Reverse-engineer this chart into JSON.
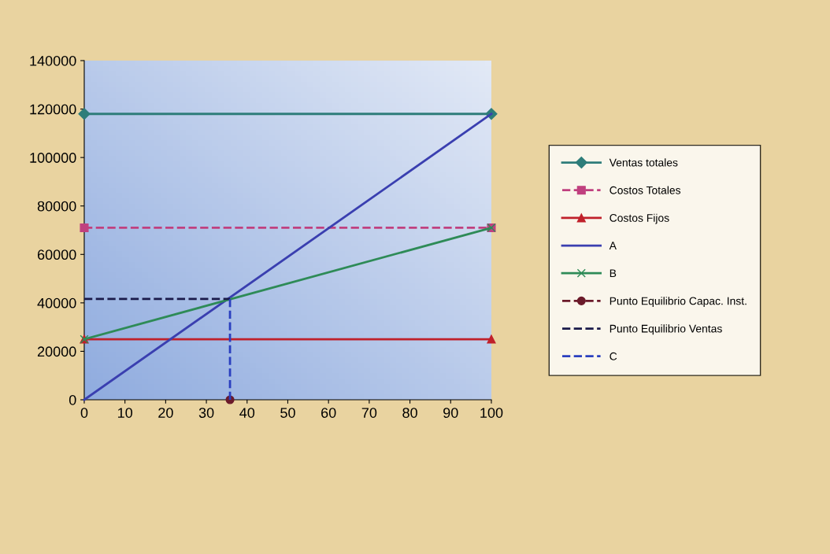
{
  "chart_data": {
    "type": "line",
    "xlim": [
      0,
      100
    ],
    "ylim": [
      0,
      140000
    ],
    "xticks": [
      0,
      10,
      20,
      30,
      40,
      50,
      60,
      70,
      80,
      90,
      100
    ],
    "yticks": [
      0,
      20000,
      40000,
      60000,
      80000,
      100000,
      120000,
      140000
    ],
    "grid": false,
    "legend": "right",
    "series": [
      {
        "name": "Ventas totales",
        "color": "#2e7d7a",
        "x": [
          0,
          100
        ],
        "values": [
          118000,
          118000
        ],
        "marker": "diamond",
        "line_style": "solid"
      },
      {
        "name": "Costos Totales",
        "color": "#c0407f",
        "x": [
          0,
          100
        ],
        "values": [
          71000,
          71000
        ],
        "marker": "square",
        "line_style": "dashed"
      },
      {
        "name": "Costos Fijos",
        "color": "#c0202a",
        "x": [
          0,
          100
        ],
        "values": [
          25000,
          25000
        ],
        "marker": "triangle",
        "line_style": "solid"
      },
      {
        "name": "A",
        "color": "#3a3fb0",
        "x": [
          0,
          100
        ],
        "values": [
          0,
          118000
        ],
        "marker": "none",
        "line_style": "solid"
      },
      {
        "name": "B",
        "color": "#2e8b57",
        "x": [
          0,
          100
        ],
        "values": [
          25000,
          71000
        ],
        "marker": "cross",
        "line_style": "solid"
      },
      {
        "name": "Punto Equilibrio Capac. Inst.",
        "color": "#6b1a2a",
        "x": [
          35.8
        ],
        "values": [
          0
        ],
        "marker": "circle",
        "line_style": "dashed"
      },
      {
        "name": "Punto Equilibrio Ventas",
        "color": "#1a1a4a",
        "x": [
          0,
          35.8
        ],
        "values": [
          41600,
          41600
        ],
        "marker": "none",
        "line_style": "dashed"
      },
      {
        "name": "C",
        "color": "#2a3fbf",
        "x": [
          35.8,
          35.8
        ],
        "values": [
          0,
          41600
        ],
        "marker": "none",
        "line_style": "dashed"
      }
    ]
  }
}
